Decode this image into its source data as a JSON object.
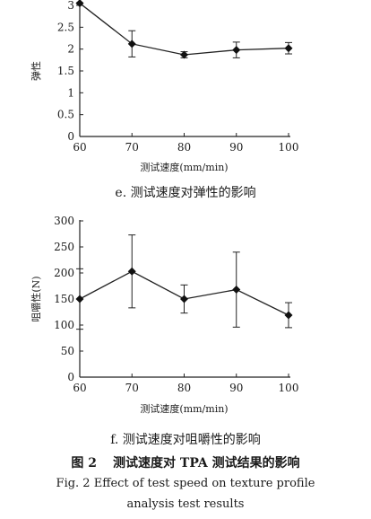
{
  "chart_data": [
    {
      "type": "line",
      "x": [
        60,
        70,
        80,
        90,
        100
      ],
      "values": [
        3.05,
        2.12,
        1.87,
        1.98,
        2.02
      ],
      "errors": [
        0.05,
        0.3,
        0.07,
        0.18,
        0.13
      ],
      "xlabel": "测试速度(mm/min)",
      "ylabel": "弹性",
      "xlim": [
        60,
        100
      ],
      "ylim": [
        0,
        3
      ],
      "xticks": [
        60,
        70,
        80,
        90,
        100
      ],
      "yticks": [
        "0",
        "0.5",
        "1",
        "1.5",
        "2",
        "2.5",
        "3"
      ],
      "caption": "e. 测试速度对弹性的影响",
      "marker": "diamond",
      "line_color": "#222222"
    },
    {
      "type": "line",
      "x": [
        60,
        70,
        80,
        90,
        100
      ],
      "values": [
        150,
        203,
        150,
        168,
        119
      ],
      "errors": [
        58,
        70,
        27,
        72,
        24
      ],
      "xlabel": "测试速度(mm/min)",
      "ylabel": "咀嚼性(N)",
      "xlim": [
        60,
        100
      ],
      "ylim": [
        0,
        300
      ],
      "xticks": [
        60,
        70,
        80,
        90,
        100
      ],
      "yticks": [
        "0",
        "50",
        "100",
        "150",
        "200",
        "250",
        "300"
      ],
      "caption": "f. 测试速度对咀嚼性的影响",
      "marker": "diamond",
      "line_color": "#222222"
    }
  ],
  "figure": {
    "number": "图 2",
    "title_cn": "测试速度对 TPA 测试结果的影响",
    "title_en_line1": "Fig. 2 Effect of test speed on texture profile",
    "title_en_line2": "analysis test results"
  }
}
